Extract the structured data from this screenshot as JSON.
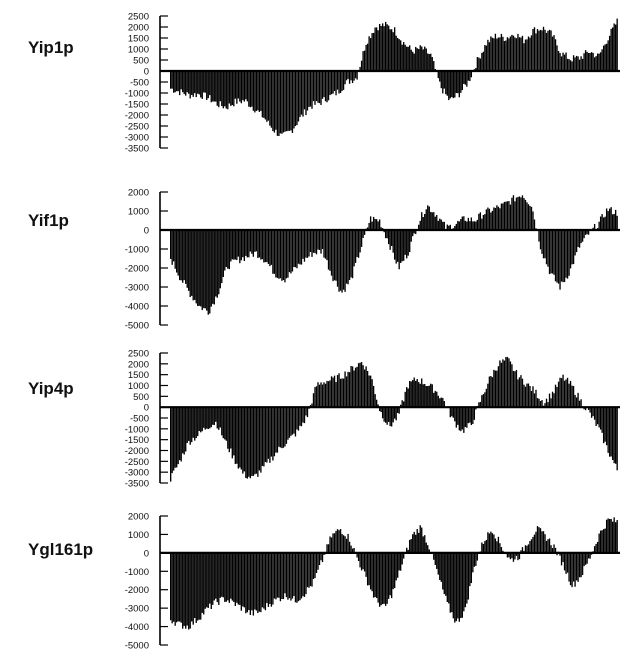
{
  "chart_data": [
    {
      "type": "bar",
      "name_label": "Yip1p",
      "ylim": [
        -3500,
        2500
      ],
      "yticks": [
        "2500",
        "2000",
        "1500",
        "1000",
        "500",
        "0",
        "-500",
        "-1000",
        "-1500",
        "-2000",
        "-2500",
        "-3000",
        "-3500"
      ],
      "tick_values": [
        2500,
        2000,
        1500,
        1000,
        500,
        0,
        -500,
        -1000,
        -1500,
        -2000,
        -2500,
        -3000,
        -3500
      ],
      "profile": [
        -800,
        -950,
        -1100,
        -1050,
        -1200,
        -1500,
        -1650,
        -1400,
        -1350,
        -1700,
        -2100,
        -2650,
        -3000,
        -2700,
        -2100,
        -1600,
        -1450,
        -1200,
        -950,
        -500,
        -300,
        1300,
        2000,
        2100,
        1900,
        1300,
        900,
        1050,
        700,
        -700,
        -1350,
        -1050,
        -500,
        500,
        1300,
        1600,
        1500,
        1700,
        1400,
        1850,
        1950,
        1650,
        800,
        550,
        600,
        900,
        650,
        1500,
        2250
      ]
    },
    {
      "type": "bar",
      "name_label": "Yif1p",
      "ylim": [
        -5000,
        2000
      ],
      "yticks": [
        "2000",
        "1000",
        "0",
        "-1000",
        "-2000",
        "-3000",
        "-4000",
        "-5000"
      ],
      "tick_values": [
        2000,
        1000,
        0,
        -1000,
        -2000,
        -3000,
        -4000,
        -5000
      ],
      "profile": [
        -1500,
        -2500,
        -3300,
        -4000,
        -4300,
        -3300,
        -1900,
        -1600,
        -1400,
        -1200,
        -1600,
        -2300,
        -2600,
        -2100,
        -1600,
        -1200,
        -1100,
        -2400,
        -3300,
        -2600,
        -1000,
        600,
        500,
        -700,
        -2000,
        -1200,
        300,
        1300,
        800,
        100,
        300,
        600,
        500,
        900,
        1100,
        1300,
        1600,
        1900,
        1300,
        -1000,
        -2300,
        -3000,
        -2200,
        -900,
        -200,
        300,
        1100,
        900
      ]
    },
    {
      "type": "bar",
      "name_label": "Yip4p",
      "ylim": [
        -3500,
        2500
      ],
      "yticks": [
        "2500",
        "2000",
        "1500",
        "1000",
        "500",
        "0",
        "-500",
        "-1000",
        "-1500",
        "-2000",
        "-2500",
        "-3000",
        "-3500"
      ],
      "tick_values": [
        2500,
        2000,
        1500,
        1000,
        500,
        0,
        -500,
        -1000,
        -1500,
        -2000,
        -2500,
        -3000,
        -3500
      ],
      "profile": [
        -3300,
        -2500,
        -1600,
        -1300,
        -900,
        -700,
        -1600,
        -2400,
        -3100,
        -3300,
        -2900,
        -2400,
        -1900,
        -1500,
        -1100,
        -400,
        1000,
        1200,
        1300,
        1500,
        1800,
        2100,
        1400,
        -200,
        -900,
        -400,
        1000,
        1300,
        1100,
        800,
        300,
        -600,
        -1100,
        -800,
        300,
        1300,
        2000,
        2200,
        1500,
        1100,
        700,
        200,
        700,
        1400,
        1000,
        300,
        -300,
        -1000,
        -2000,
        -2900
      ]
    },
    {
      "type": "bar",
      "name_label": "Ygl161p",
      "ylim": [
        -5000,
        2000
      ],
      "yticks": [
        "2000",
        "1000",
        "0",
        "-1000",
        "-2000",
        "-3000",
        "-4000",
        "-5000"
      ],
      "tick_values": [
        2000,
        1000,
        0,
        -1000,
        -2000,
        -3000,
        -4000,
        -5000
      ],
      "profile": [
        -3600,
        -3900,
        -4000,
        -3600,
        -3100,
        -2700,
        -2500,
        -2700,
        -3000,
        -3300,
        -3200,
        -2800,
        -2500,
        -2300,
        -2600,
        -2200,
        -1600,
        -400,
        900,
        1300,
        800,
        -400,
        -1500,
        -2600,
        -3000,
        -2000,
        -500,
        900,
        1400,
        300,
        -1300,
        -2800,
        -3800,
        -3100,
        -800,
        600,
        1300,
        400,
        -400,
        -200,
        600,
        1300,
        900,
        300,
        -700,
        -1800,
        -1200,
        -200,
        1000,
        1800,
        1700
      ]
    }
  ]
}
